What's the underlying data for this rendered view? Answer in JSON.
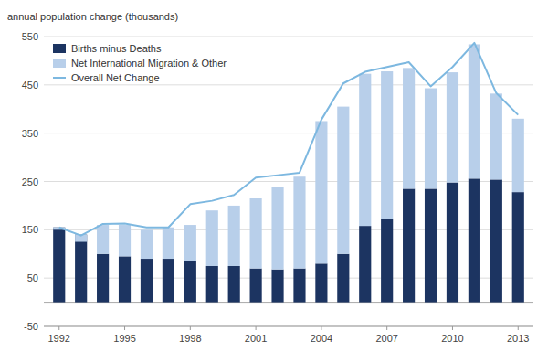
{
  "chart_data": {
    "type": "bar",
    "stacked": true,
    "y_label": "annual population change (thousands)",
    "x": [
      1992,
      1993,
      1994,
      1995,
      1996,
      1997,
      1998,
      1999,
      2000,
      2001,
      2002,
      2003,
      2004,
      2005,
      2006,
      2007,
      2008,
      2009,
      2010,
      2011,
      2012,
      2013
    ],
    "series": [
      {
        "name": "Births minus Deaths",
        "type": "bar",
        "color": "#1c3461",
        "values": [
          155,
          140,
          100,
          95,
          90,
          90,
          85,
          75,
          75,
          70,
          68,
          70,
          80,
          100,
          158,
          173,
          235,
          235,
          248,
          256,
          254,
          228
        ]
      },
      {
        "name": "Net International Migration & Other",
        "type": "bar",
        "color": "#b8cfea",
        "values": [
          -5,
          -15,
          60,
          65,
          60,
          65,
          75,
          115,
          125,
          145,
          170,
          190,
          295,
          305,
          315,
          305,
          250,
          208,
          228,
          278,
          178,
          152
        ]
      },
      {
        "name": "Overall Net Change",
        "type": "line",
        "color": "#7db8e0",
        "values": [
          155,
          138,
          162,
          163,
          155,
          155,
          203,
          210,
          222,
          258,
          263,
          268,
          378,
          453,
          477,
          487,
          497,
          447,
          487,
          537,
          433,
          388
        ]
      }
    ],
    "xlim": [
      1991.3,
      2013.7
    ],
    "xticks": [
      1992,
      1995,
      1998,
      2001,
      2004,
      2007,
      2010,
      2013
    ],
    "ylim": [
      -50,
      550
    ],
    "yticks": [
      -50,
      50,
      150,
      250,
      350,
      450,
      550
    ],
    "grid": true,
    "legend": "upper left"
  }
}
